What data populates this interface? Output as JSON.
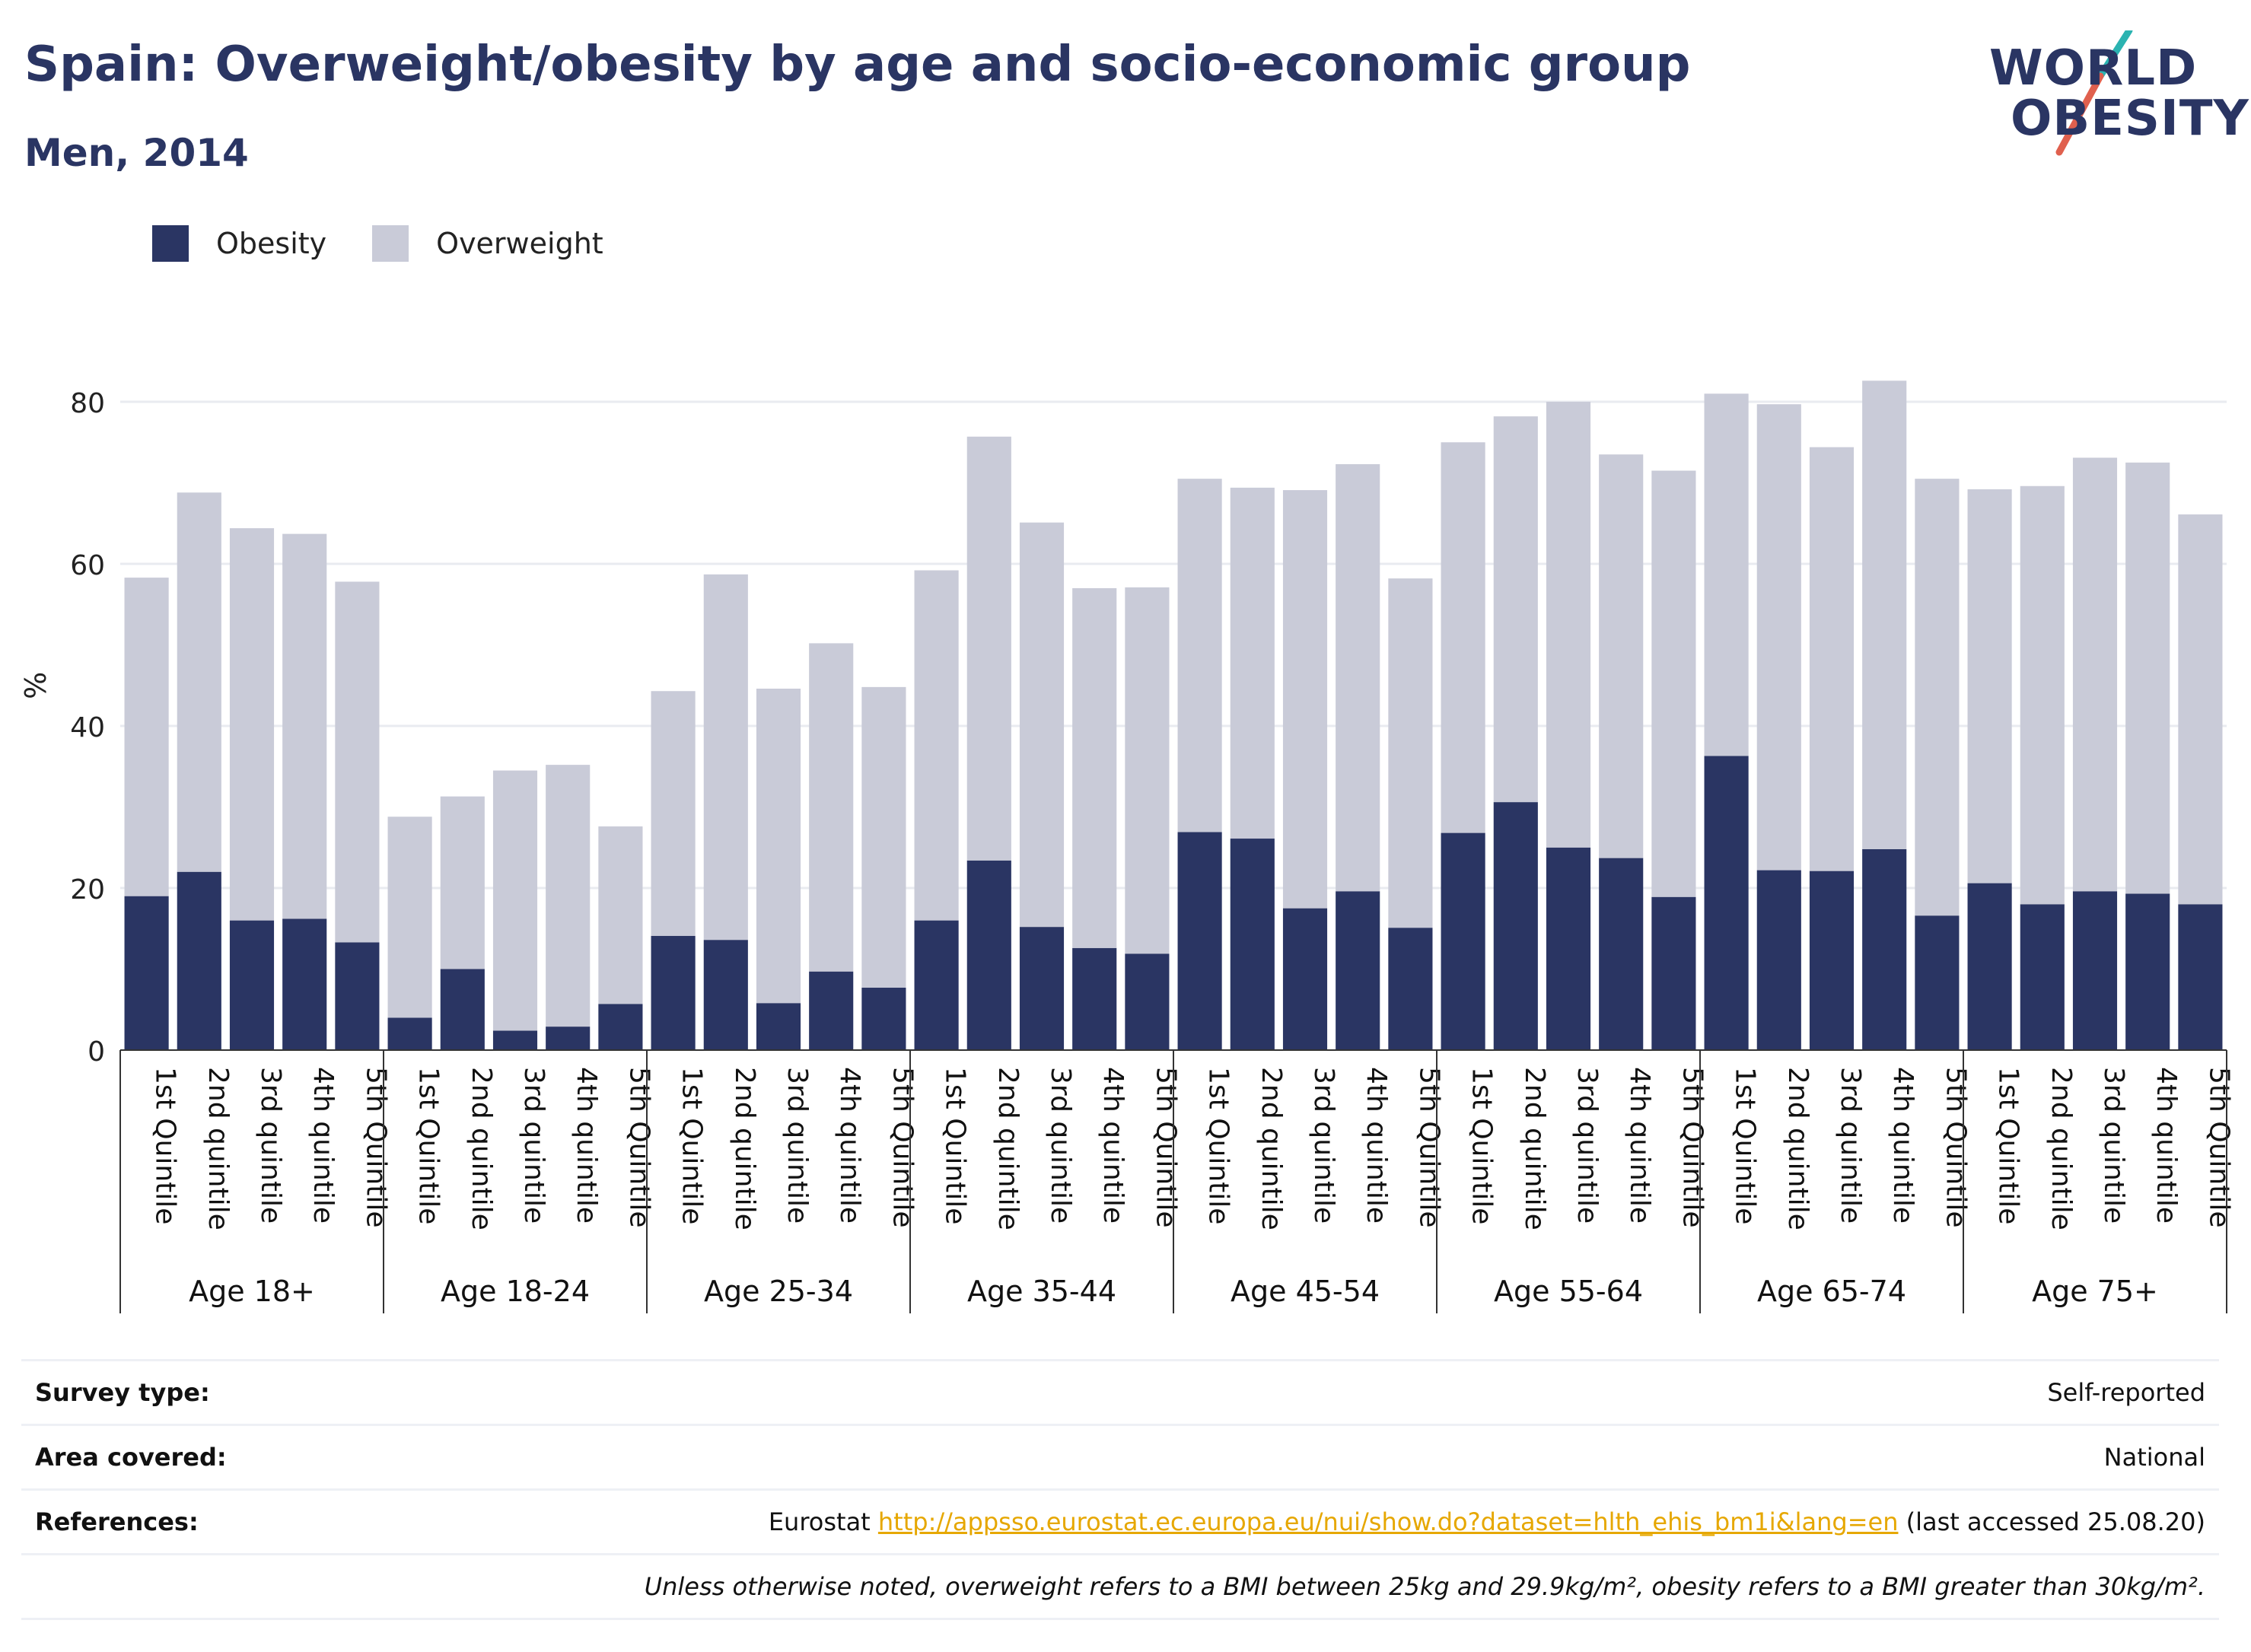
{
  "header": {
    "title": "Spain: Overweight/obesity by age and socio-economic group",
    "subtitle": "Men, 2014",
    "logo_line1": "WORLD",
    "logo_line2": "OBESITY"
  },
  "legend": {
    "obesity": "Obesity",
    "overweight": "Overweight"
  },
  "colors": {
    "obesity": "#2a3563",
    "overweight": "#c9cbd8",
    "accent_teal": "#2bb3b1",
    "accent_red": "#e0604e",
    "link": "#e6a700"
  },
  "chart_data": {
    "type": "bar",
    "stacked": true,
    "ylabel": "%",
    "ylim": [
      0,
      90
    ],
    "yticks": [
      0,
      20,
      40,
      60,
      80
    ],
    "grid": true,
    "legend_position": "top-left",
    "groups": [
      {
        "name": "Age 18+",
        "categories": [
          "1st Quintile",
          "2nd quintile",
          "3rd quintile",
          "4th quintile",
          "5th Quintile"
        ]
      },
      {
        "name": "Age 18-24",
        "categories": [
          "1st Quintile",
          "2nd quintile",
          "3rd quintile",
          "4th quintile",
          "5th Quintile"
        ]
      },
      {
        "name": "Age 25-34",
        "categories": [
          "1st Quintile",
          "2nd quintile",
          "3rd quintile",
          "4th quintile",
          "5th Quintile"
        ]
      },
      {
        "name": "Age 35-44",
        "categories": [
          "1st Quintile",
          "2nd quintile",
          "3rd quintile",
          "4th quintile",
          "5th Quintile"
        ]
      },
      {
        "name": "Age 45-54",
        "categories": [
          "1st Quintile",
          "2nd quintile",
          "3rd quintile",
          "4th quintile",
          "5th Quintile"
        ]
      },
      {
        "name": "Age 55-64",
        "categories": [
          "1st Quintile",
          "2nd quintile",
          "3rd quintile",
          "4th quintile",
          "5th Quintile"
        ]
      },
      {
        "name": "Age 65-74",
        "categories": [
          "1st Quintile",
          "2nd quintile",
          "3rd quintile",
          "4th quintile",
          "5th Quintile"
        ]
      },
      {
        "name": "Age 75+",
        "categories": [
          "1st Quintile",
          "2nd quintile",
          "3rd quintile",
          "4th quintile",
          "5th Quintile"
        ]
      }
    ],
    "series": [
      {
        "name": "Obesity",
        "values": [
          19.0,
          22.0,
          16.0,
          16.2,
          13.3,
          4.0,
          10.0,
          2.4,
          2.9,
          5.7,
          14.1,
          13.6,
          5.8,
          9.7,
          7.7,
          16.0,
          23.4,
          15.2,
          12.6,
          11.9,
          26.9,
          26.1,
          17.5,
          19.6,
          15.1,
          26.8,
          30.6,
          25.0,
          23.7,
          18.9,
          36.3,
          22.2,
          22.1,
          24.8,
          16.6,
          20.6,
          18.0,
          19.6,
          19.3,
          18.0
        ]
      },
      {
        "name": "Overweight",
        "values": [
          39.3,
          46.8,
          48.4,
          47.5,
          44.5,
          24.8,
          21.3,
          32.1,
          32.3,
          21.9,
          30.2,
          45.1,
          38.8,
          40.5,
          37.1,
          43.2,
          52.3,
          49.9,
          44.4,
          45.2,
          43.6,
          43.3,
          51.6,
          52.7,
          43.1,
          48.2,
          47.6,
          55.0,
          49.8,
          52.6,
          44.7,
          57.5,
          52.3,
          57.8,
          53.9,
          48.6,
          51.6,
          53.5,
          53.2,
          48.1
        ]
      }
    ]
  },
  "footer": {
    "survey_type_label": "Survey type:",
    "survey_type_value": "Self-reported",
    "area_label": "Area covered:",
    "area_value": "National",
    "references_label": "References:",
    "references_prefix": "Eurostat ",
    "references_link": "http://appsso.eurostat.ec.europa.eu/nui/show.do?dataset=hlth_ehis_bm1i&lang=en",
    "references_suffix": " (last accessed 25.08.20)",
    "note": "Unless otherwise noted, overweight refers to a BMI between 25kg and 29.9kg/m², obesity refers to a BMI greater than 30kg/m²."
  }
}
